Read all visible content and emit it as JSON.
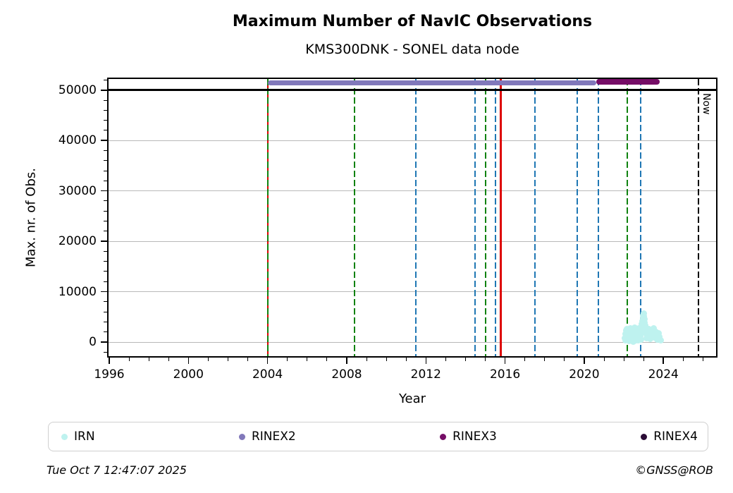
{
  "chart": {
    "title": "Maximum Number of NavIC Observations",
    "subtitle": "KMS300DNK - SONEL data node",
    "xlabel": "Year",
    "ylabel": "Max. nr. of Obs.",
    "now_label": "Now"
  },
  "legend": {
    "items": [
      {
        "label": "IRN",
        "color": "#bef2ef"
      },
      {
        "label": "RINEX2",
        "color": "#8178ba"
      },
      {
        "label": "RINEX3",
        "color": "#750d66"
      },
      {
        "label": "RINEX4",
        "color": "#2a0b35"
      }
    ]
  },
  "footer": {
    "timestamp": "Tue Oct  7 12:47:07 2025",
    "copyright": "©GNSS@ROB"
  },
  "chart_data": {
    "type": "scatter",
    "title": "Maximum Number of NavIC Observations",
    "subtitle": "KMS300DNK - SONEL data node",
    "xlabel": "Year",
    "ylabel": "Max. nr. of Obs.",
    "xlim": [
      1995.9,
      2026.75
    ],
    "ylim": [
      -3100,
      52500
    ],
    "x_major_ticks": [
      1996,
      2000,
      2004,
      2008,
      2012,
      2016,
      2020,
      2024
    ],
    "y_major_ticks": [
      0,
      10000,
      20000,
      30000,
      40000,
      50000
    ],
    "grid": "horizontal-only",
    "limit_line": {
      "value": 50000,
      "color": "#000000"
    },
    "spans": [
      {
        "name": "RINEX2",
        "start": 2004.0,
        "end": 2020.6,
        "value": 51500,
        "color": "#8178ba",
        "thickness": 7
      },
      {
        "name": "RINEX3",
        "start": 2020.6,
        "end": 2023.8,
        "value": 51600,
        "color": "#750d66",
        "thickness": 8
      }
    ],
    "vlines": [
      {
        "year": 2004.0,
        "color": "green-red-overlap",
        "style": "dashed"
      },
      {
        "year": 2008.4,
        "color": "green",
        "style": "dashed"
      },
      {
        "year": 2011.5,
        "color": "blue",
        "style": "dashed"
      },
      {
        "year": 2014.5,
        "color": "blue",
        "style": "dashed"
      },
      {
        "year": 2015.0,
        "color": "green",
        "style": "dashed"
      },
      {
        "year": 2015.5,
        "color": "blue",
        "style": "dashed"
      },
      {
        "year": 2015.8,
        "color": "red",
        "style": "solid"
      },
      {
        "year": 2017.5,
        "color": "blue",
        "style": "dashed"
      },
      {
        "year": 2019.65,
        "color": "blue",
        "style": "dashed"
      },
      {
        "year": 2020.7,
        "color": "blue",
        "style": "dashed"
      },
      {
        "year": 2022.17,
        "color": "green",
        "style": "dashed"
      },
      {
        "year": 2022.85,
        "color": "blue",
        "style": "dashed"
      }
    ],
    "now_line": {
      "year": 2025.77,
      "color": "black",
      "style": "dashed",
      "label": "Now"
    },
    "colors": {
      "blue": "#1f77b4",
      "green": "#0f820f",
      "red": "#dd0000",
      "black": "#000000",
      "irn": "#bef2ef"
    },
    "series": [
      {
        "name": "IRN",
        "color": "#bef2ef",
        "points": [
          [
            2022.06,
            700
          ],
          [
            2022.08,
            1600
          ],
          [
            2022.1,
            300
          ],
          [
            2022.12,
            2300
          ],
          [
            2022.14,
            1100
          ],
          [
            2022.16,
            2600
          ],
          [
            2022.18,
            500
          ],
          [
            2022.2,
            1900
          ],
          [
            2022.22,
            900
          ],
          [
            2022.24,
            2500
          ],
          [
            2022.26,
            1400
          ],
          [
            2022.28,
            200
          ],
          [
            2022.3,
            2100
          ],
          [
            2022.32,
            700
          ],
          [
            2022.34,
            2700
          ],
          [
            2022.36,
            1200
          ],
          [
            2022.38,
            400
          ],
          [
            2022.4,
            2300
          ],
          [
            2022.42,
            1700
          ],
          [
            2022.44,
            800
          ],
          [
            2022.46,
            2600
          ],
          [
            2022.48,
            100
          ],
          [
            2022.5,
            1500
          ],
          [
            2022.52,
            2200
          ],
          [
            2022.54,
            600
          ],
          [
            2022.56,
            2800
          ],
          [
            2022.58,
            1000
          ],
          [
            2022.6,
            2000
          ],
          [
            2022.62,
            300
          ],
          [
            2022.64,
            2500
          ],
          [
            2022.66,
            1300
          ],
          [
            2022.68,
            700
          ],
          [
            2022.7,
            2200
          ],
          [
            2022.72,
            1600
          ],
          [
            2022.74,
            400
          ],
          [
            2022.76,
            2700
          ],
          [
            2022.78,
            900
          ],
          [
            2022.8,
            2000
          ],
          [
            2022.82,
            1200
          ],
          [
            2022.84,
            2600
          ],
          [
            2022.86,
            500
          ],
          [
            2022.88,
            1800
          ],
          [
            2022.9,
            2900
          ],
          [
            2022.92,
            3500
          ],
          [
            2022.94,
            4100
          ],
          [
            2022.96,
            4700
          ],
          [
            2022.98,
            5200
          ],
          [
            2023.0,
            5600
          ],
          [
            2023.02,
            5100
          ],
          [
            2023.04,
            4500
          ],
          [
            2023.06,
            3900
          ],
          [
            2023.08,
            3300
          ],
          [
            2023.1,
            2700
          ],
          [
            2023.12,
            2100
          ],
          [
            2023.14,
            1500
          ],
          [
            2023.16,
            800
          ],
          [
            2023.18,
            2400
          ],
          [
            2023.2,
            1100
          ],
          [
            2023.25,
            2600
          ],
          [
            2023.3,
            1700
          ],
          [
            2023.35,
            600
          ],
          [
            2023.4,
            2300
          ],
          [
            2023.45,
            1300
          ],
          [
            2023.5,
            2700
          ],
          [
            2023.55,
            900
          ],
          [
            2023.6,
            2000
          ],
          [
            2023.65,
            1500
          ],
          [
            2023.7,
            500
          ],
          [
            2023.75,
            1800
          ],
          [
            2023.8,
            1000
          ],
          [
            2023.85,
            400
          ]
        ]
      },
      {
        "name": "RINEX2",
        "note": "continuous max ~51500 from 2004.0 to 2020.6"
      },
      {
        "name": "RINEX3",
        "note": "continuous max ~51600 from 2020.6 to 2023.8"
      },
      {
        "name": "RINEX4",
        "note": "no data shown"
      }
    ]
  }
}
